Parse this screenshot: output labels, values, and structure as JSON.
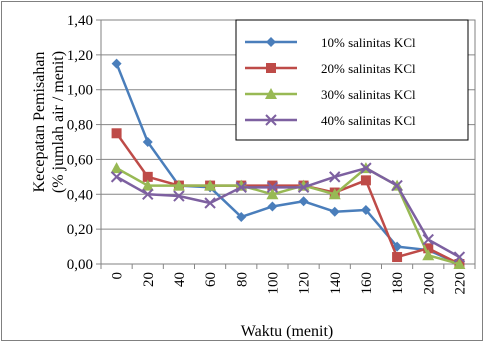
{
  "chart_data": {
    "type": "line",
    "xlabel": "Waktu (menit)",
    "ylabel_line1": "Kecepatan Pemisahan",
    "ylabel_line2": "(% jumlah air / menit)",
    "categories": [
      "0",
      "20",
      "40",
      "60",
      "80",
      "100",
      "120",
      "140",
      "160",
      "180",
      "200",
      "220"
    ],
    "y_ticks": [
      "0,00",
      "0,20",
      "0,40",
      "0,60",
      "0,80",
      "1,00",
      "1,20",
      "1,40"
    ],
    "ylim": [
      0,
      1.4
    ],
    "grid": "horizontal",
    "legend_position": "top-right",
    "series": [
      {
        "name": "10% salinitas KCl",
        "color": "#4a7ebb",
        "marker": "diamond",
        "values": [
          1.15,
          0.7,
          0.45,
          0.44,
          0.27,
          0.33,
          0.36,
          0.3,
          0.31,
          0.1,
          0.08,
          0.0
        ]
      },
      {
        "name": "20% salinitas KCl",
        "color": "#be4b48",
        "marker": "square",
        "values": [
          0.75,
          0.5,
          0.45,
          0.45,
          0.45,
          0.45,
          0.45,
          0.41,
          0.48,
          0.04,
          0.09,
          0.0
        ]
      },
      {
        "name": "30% salinitas KCl",
        "color": "#98b954",
        "marker": "triangle",
        "values": [
          0.55,
          0.45,
          0.45,
          0.45,
          0.45,
          0.4,
          0.45,
          0.4,
          0.55,
          0.45,
          0.05,
          0.0
        ]
      },
      {
        "name": "40% salinitas KCl",
        "color": "#7d60a0",
        "marker": "x",
        "values": [
          0.5,
          0.4,
          0.39,
          0.35,
          0.44,
          0.44,
          0.44,
          0.5,
          0.55,
          0.45,
          0.14,
          0.04
        ]
      }
    ]
  }
}
